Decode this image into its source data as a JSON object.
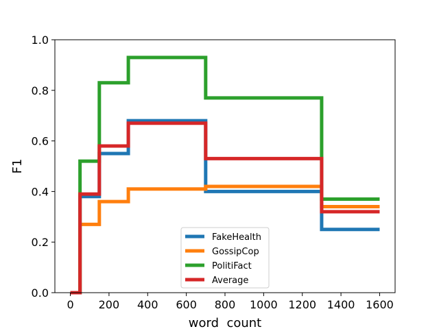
{
  "chart_data": {
    "type": "line",
    "step": "post",
    "xlabel": "word  count",
    "ylabel": "F1",
    "xlim": [
      -80,
      1680
    ],
    "ylim": [
      0,
      1.0
    ],
    "x_ticks": [
      0,
      200,
      400,
      600,
      800,
      1000,
      1200,
      1400,
      1600
    ],
    "y_ticks": [
      0.0,
      0.2,
      0.4,
      0.6,
      0.8,
      1.0
    ],
    "x_tick_labels": [
      "0",
      "200",
      "400",
      "600",
      "800",
      "1000",
      "1200",
      "1400",
      "1600"
    ],
    "y_tick_labels": [
      "0.0",
      "0.2",
      "0.4",
      "0.6",
      "0.8",
      "1.0"
    ],
    "x": [
      0,
      50,
      150,
      300,
      700,
      1300,
      1600
    ],
    "legend_position": "lower center",
    "series": [
      {
        "name": "FakeHealth",
        "color": "#1f77b4",
        "values": [
          0.0,
          0.38,
          0.55,
          0.68,
          0.4,
          0.25,
          0.25
        ]
      },
      {
        "name": "GossipCop",
        "color": "#ff7f0e",
        "values": [
          0.0,
          0.27,
          0.36,
          0.41,
          0.42,
          0.34,
          0.34
        ]
      },
      {
        "name": "PolitiFact",
        "color": "#2ca02c",
        "values": [
          0.0,
          0.52,
          0.83,
          0.93,
          0.77,
          0.37,
          0.37
        ]
      },
      {
        "name": "Average",
        "color": "#d62728",
        "values": [
          0.0,
          0.39,
          0.58,
          0.67,
          0.53,
          0.32,
          0.32
        ]
      }
    ]
  }
}
